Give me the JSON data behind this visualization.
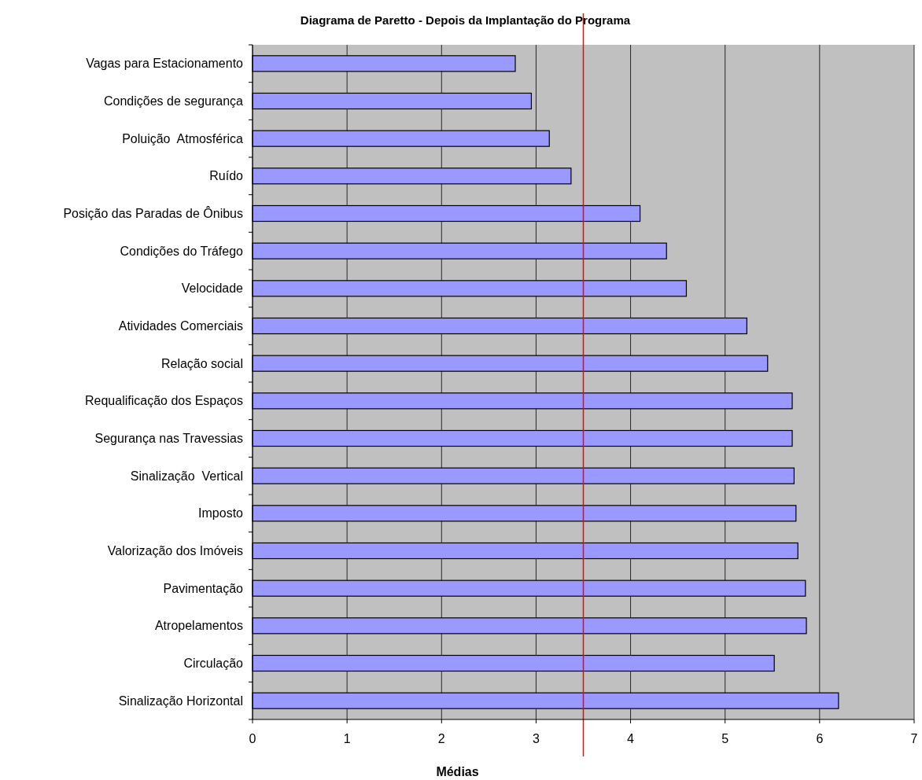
{
  "chart_data": {
    "type": "bar",
    "orientation": "horizontal",
    "title": "Diagrama de Paretto - Depois da Implantação do Programa",
    "xlabel": "Médias",
    "categories": [
      "Vagas para Estacionamento",
      "Condições de segurança",
      "Poluição  Atmosférica",
      "Ruído",
      "Posição das Paradas de Ônibus",
      "Condições do Tráfego",
      "Velocidade",
      "Atividades Comerciais",
      "Relação social",
      "Requalificação dos Espaços",
      "Segurança nas Travessias",
      "Sinalização  Vertical",
      "Imposto",
      "Valorização dos Imóveis",
      "Pavimentação",
      "Atropelamentos",
      "Circulação",
      "Sinalização Horizontal"
    ],
    "values": [
      2.78,
      2.95,
      3.14,
      3.37,
      4.1,
      4.38,
      4.59,
      5.23,
      5.45,
      5.71,
      5.71,
      5.73,
      5.75,
      5.77,
      5.85,
      5.86,
      5.52,
      6.2
    ],
    "color": "#9999ff",
    "xlim": [
      0,
      7
    ],
    "xticks": [
      0,
      1,
      2,
      3,
      4,
      5,
      6,
      7
    ],
    "grid": "x",
    "ref_lines": [
      {
        "axis": "x",
        "value": 3.5,
        "color": "#ff0000"
      }
    ]
  }
}
